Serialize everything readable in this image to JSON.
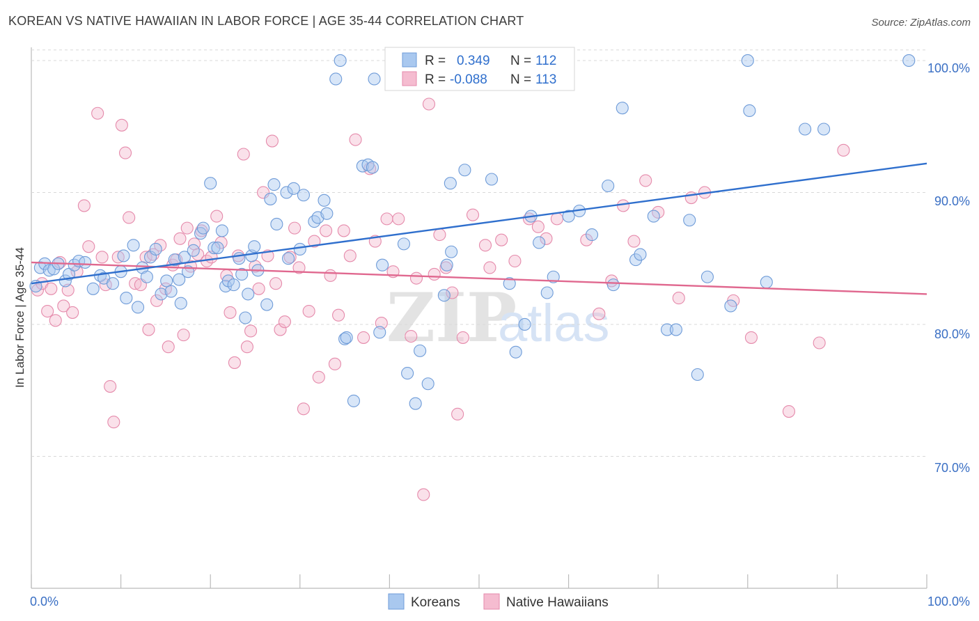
{
  "title": "KOREAN VS NATIVE HAWAIIAN IN LABOR FORCE | AGE 35-44 CORRELATION CHART",
  "source": "Source: ZipAtlas.com",
  "colors": {
    "blue_fill": "#a9c8ef",
    "blue_stroke": "#6e9bd8",
    "blue_line": "#2f6fcd",
    "pink_fill": "#f5bcd0",
    "pink_stroke": "#e58aab",
    "pink_line": "#e0688f",
    "axis_text": "#3a6fc4",
    "grid": "#d8d8d8"
  },
  "legend": {
    "rows": [
      {
        "r_label": "R = ",
        "r_value": "0.349",
        "n_label": "N = ",
        "n_value": "112"
      },
      {
        "r_label": "R = ",
        "r_value": "-0.088",
        "n_label": "N = ",
        "n_value": "113"
      }
    ]
  },
  "watermark": {
    "zip": "ZIP",
    "atlas": "atlas"
  },
  "chart_data": {
    "type": "scatter",
    "title": "KOREAN VS NATIVE HAWAIIAN IN LABOR FORCE | AGE 35-44 CORRELATION CHART",
    "xlabel": "",
    "ylabel": "In Labor Force | Age 35-44",
    "xlim": [
      0,
      100
    ],
    "ylim": [
      60,
      101
    ],
    "x_tick_labels": [
      "0.0%",
      "100.0%"
    ],
    "y_ticks": [
      70,
      80,
      90,
      100
    ],
    "y_tick_labels": [
      "70.0%",
      "80.0%",
      "90.0%",
      "100.0%"
    ],
    "grid": true,
    "series": [
      {
        "name": "Koreans",
        "r": 0.349,
        "n": 112,
        "trend": {
          "x": [
            0,
            100
          ],
          "y": [
            83.1,
            92.2
          ]
        },
        "points": [
          [
            0.5,
            82.9
          ],
          [
            1.0,
            84.3
          ],
          [
            1.5,
            84.6
          ],
          [
            2.0,
            84.1
          ],
          [
            2.5,
            84.2
          ],
          [
            3.0,
            84.6
          ],
          [
            3.8,
            83.3
          ],
          [
            4.2,
            83.8
          ],
          [
            4.8,
            84.5
          ],
          [
            5.3,
            84.8
          ],
          [
            6.0,
            84.7
          ],
          [
            6.9,
            82.7
          ],
          [
            7.7,
            83.7
          ],
          [
            8.1,
            83.5
          ],
          [
            9.1,
            83.1
          ],
          [
            10.0,
            84.0
          ],
          [
            10.3,
            85.2
          ],
          [
            10.6,
            82.0
          ],
          [
            11.4,
            86.0
          ],
          [
            11.9,
            81.3
          ],
          [
            12.4,
            84.3
          ],
          [
            12.9,
            83.6
          ],
          [
            13.3,
            85.1
          ],
          [
            13.9,
            85.7
          ],
          [
            14.5,
            82.3
          ],
          [
            15.1,
            83.3
          ],
          [
            15.6,
            82.5
          ],
          [
            16.0,
            84.9
          ],
          [
            16.5,
            83.4
          ],
          [
            16.7,
            81.6
          ],
          [
            17.1,
            85.1
          ],
          [
            17.5,
            84.0
          ],
          [
            18.1,
            85.6
          ],
          [
            18.9,
            86.9
          ],
          [
            19.2,
            87.3
          ],
          [
            20.0,
            90.7
          ],
          [
            20.4,
            85.8
          ],
          [
            20.8,
            85.8
          ],
          [
            21.3,
            87.1
          ],
          [
            21.7,
            82.9
          ],
          [
            22.0,
            83.3
          ],
          [
            22.6,
            83.0
          ],
          [
            23.2,
            85.0
          ],
          [
            23.5,
            83.8
          ],
          [
            23.9,
            80.5
          ],
          [
            24.2,
            82.3
          ],
          [
            24.6,
            85.2
          ],
          [
            24.9,
            85.9
          ],
          [
            25.3,
            84.1
          ],
          [
            26.3,
            81.5
          ],
          [
            26.7,
            89.5
          ],
          [
            27.1,
            90.6
          ],
          [
            27.4,
            87.6
          ],
          [
            28.5,
            90.0
          ],
          [
            28.7,
            85.0
          ],
          [
            29.3,
            90.3
          ],
          [
            30.0,
            85.7
          ],
          [
            30.4,
            89.8
          ],
          [
            31.6,
            87.8
          ],
          [
            32.0,
            88.1
          ],
          [
            32.7,
            89.4
          ],
          [
            33.0,
            88.4
          ],
          [
            35.0,
            78.9
          ],
          [
            35.2,
            79.0
          ],
          [
            36.0,
            74.2
          ],
          [
            37.0,
            92.0
          ],
          [
            37.6,
            92.1
          ],
          [
            38.1,
            91.9
          ],
          [
            38.3,
            98.6
          ],
          [
            34.0,
            98.6
          ],
          [
            38.9,
            79.4
          ],
          [
            39.2,
            84.5
          ],
          [
            41.6,
            86.1
          ],
          [
            42.0,
            76.3
          ],
          [
            42.9,
            74.0
          ],
          [
            43.4,
            78.0
          ],
          [
            44.3,
            75.5
          ],
          [
            46.8,
            90.7
          ],
          [
            46.9,
            85.5
          ],
          [
            46.4,
            84.5
          ],
          [
            46.1,
            82.2
          ],
          [
            48.4,
            91.7
          ],
          [
            51.4,
            91.0
          ],
          [
            53.4,
            83.1
          ],
          [
            54.1,
            77.9
          ],
          [
            55.1,
            80.0
          ],
          [
            55.8,
            88.2
          ],
          [
            56.7,
            86.2
          ],
          [
            57.6,
            82.4
          ],
          [
            58.3,
            83.6
          ],
          [
            60.0,
            88.2
          ],
          [
            61.2,
            88.6
          ],
          [
            62.6,
            86.8
          ],
          [
            64.4,
            90.5
          ],
          [
            65.0,
            83.0
          ],
          [
            66.0,
            96.4
          ],
          [
            67.5,
            84.9
          ],
          [
            68.0,
            85.3
          ],
          [
            69.5,
            88.2
          ],
          [
            71.0,
            79.6
          ],
          [
            72.0,
            79.6
          ],
          [
            73.5,
            87.9
          ],
          [
            74.4,
            76.2
          ],
          [
            75.5,
            83.6
          ],
          [
            78.1,
            81.4
          ],
          [
            80.2,
            96.2
          ],
          [
            82.1,
            83.2
          ],
          [
            86.4,
            94.8
          ],
          [
            88.5,
            94.8
          ],
          [
            98.0,
            100.0
          ],
          [
            80.0,
            100.0
          ],
          [
            34.5,
            100.0
          ]
        ]
      },
      {
        "name": "Native Hawaiians",
        "r": -0.088,
        "n": 113,
        "trend": {
          "x": [
            0,
            100
          ],
          "y": [
            84.7,
            82.3
          ]
        },
        "points": [
          [
            0.7,
            82.6
          ],
          [
            1.2,
            83.1
          ],
          [
            1.8,
            81.0
          ],
          [
            2.2,
            82.7
          ],
          [
            2.7,
            80.3
          ],
          [
            3.2,
            84.7
          ],
          [
            3.6,
            81.4
          ],
          [
            4.1,
            82.6
          ],
          [
            4.6,
            80.9
          ],
          [
            5.1,
            84.0
          ],
          [
            5.9,
            89.0
          ],
          [
            6.4,
            85.9
          ],
          [
            7.4,
            96.0
          ],
          [
            7.9,
            85.1
          ],
          [
            8.3,
            83.0
          ],
          [
            8.8,
            75.3
          ],
          [
            9.2,
            72.6
          ],
          [
            9.7,
            85.1
          ],
          [
            10.1,
            95.1
          ],
          [
            10.5,
            93.0
          ],
          [
            10.9,
            88.1
          ],
          [
            11.6,
            83.1
          ],
          [
            12.2,
            83.0
          ],
          [
            12.8,
            85.1
          ],
          [
            13.1,
            79.6
          ],
          [
            13.6,
            85.3
          ],
          [
            14.0,
            81.8
          ],
          [
            14.4,
            86.0
          ],
          [
            15.0,
            82.7
          ],
          [
            15.3,
            78.3
          ],
          [
            15.8,
            84.5
          ],
          [
            16.2,
            84.9
          ],
          [
            16.6,
            86.5
          ],
          [
            17.0,
            79.2
          ],
          [
            17.4,
            87.3
          ],
          [
            17.8,
            84.4
          ],
          [
            18.2,
            86.1
          ],
          [
            18.6,
            85.3
          ],
          [
            19.0,
            87.1
          ],
          [
            19.6,
            84.8
          ],
          [
            20.1,
            85.1
          ],
          [
            20.7,
            88.2
          ],
          [
            21.2,
            86.2
          ],
          [
            21.8,
            83.7
          ],
          [
            22.2,
            80.9
          ],
          [
            22.7,
            77.1
          ],
          [
            23.1,
            85.2
          ],
          [
            23.7,
            92.9
          ],
          [
            24.1,
            78.3
          ],
          [
            24.5,
            79.5
          ],
          [
            25.0,
            84.4
          ],
          [
            25.4,
            82.7
          ],
          [
            25.9,
            90.0
          ],
          [
            26.4,
            85.2
          ],
          [
            26.9,
            93.9
          ],
          [
            27.3,
            83.1
          ],
          [
            27.8,
            79.6
          ],
          [
            28.3,
            80.2
          ],
          [
            28.9,
            85.1
          ],
          [
            29.4,
            87.3
          ],
          [
            29.9,
            84.3
          ],
          [
            30.4,
            73.6
          ],
          [
            31.0,
            81.0
          ],
          [
            31.6,
            86.3
          ],
          [
            32.1,
            76.0
          ],
          [
            32.9,
            87.1
          ],
          [
            33.4,
            83.7
          ],
          [
            33.9,
            77.0
          ],
          [
            34.3,
            80.7
          ],
          [
            34.9,
            87.1
          ],
          [
            35.6,
            85.2
          ],
          [
            36.2,
            94.0
          ],
          [
            37.1,
            79.0
          ],
          [
            37.8,
            91.8
          ],
          [
            38.4,
            86.3
          ],
          [
            39.1,
            80.1
          ],
          [
            39.7,
            88.0
          ],
          [
            40.4,
            84.0
          ],
          [
            41.0,
            88.0
          ],
          [
            42.4,
            79.1
          ],
          [
            43.0,
            83.5
          ],
          [
            43.8,
            67.1
          ],
          [
            44.4,
            96.7
          ],
          [
            45.0,
            83.8
          ],
          [
            45.6,
            86.8
          ],
          [
            46.3,
            84.3
          ],
          [
            47.0,
            82.4
          ],
          [
            47.6,
            73.2
          ],
          [
            48.2,
            79.0
          ],
          [
            49.3,
            88.3
          ],
          [
            50.7,
            86.0
          ],
          [
            51.2,
            84.3
          ],
          [
            52.5,
            86.4
          ],
          [
            54.0,
            84.8
          ],
          [
            55.6,
            88.0
          ],
          [
            56.6,
            87.4
          ],
          [
            57.5,
            86.5
          ],
          [
            58.7,
            88.0
          ],
          [
            62.0,
            86.4
          ],
          [
            63.4,
            80.8
          ],
          [
            64.8,
            83.3
          ],
          [
            66.1,
            89.0
          ],
          [
            67.3,
            86.3
          ],
          [
            68.6,
            90.9
          ],
          [
            70.0,
            88.5
          ],
          [
            72.3,
            82.0
          ],
          [
            73.7,
            89.6
          ],
          [
            75.2,
            90.0
          ],
          [
            78.4,
            81.8
          ],
          [
            80.4,
            79.0
          ],
          [
            84.6,
            73.4
          ],
          [
            88.0,
            78.6
          ],
          [
            90.7,
            93.2
          ]
        ]
      }
    ]
  },
  "bottom_legend": {
    "items": [
      {
        "label": "Koreans"
      },
      {
        "label": "Native Hawaiians"
      }
    ]
  }
}
